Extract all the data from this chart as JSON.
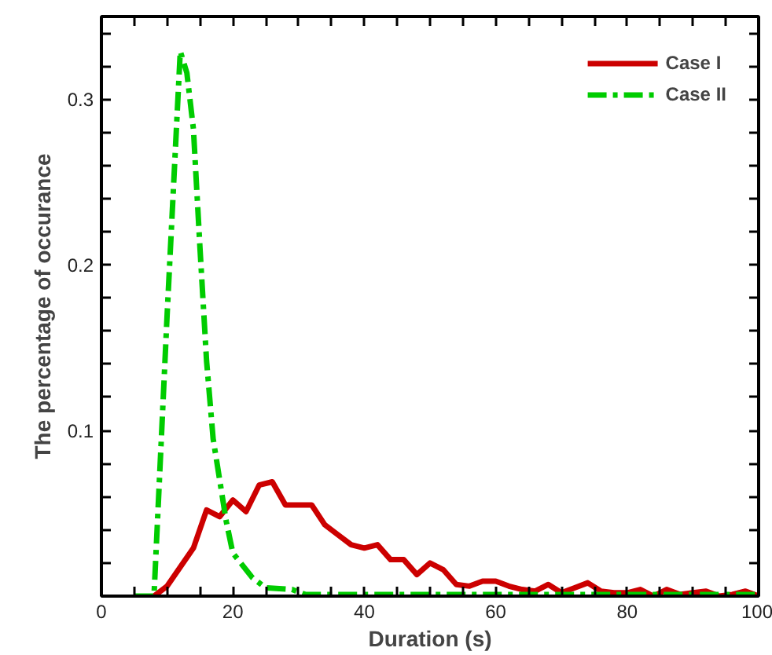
{
  "chart_data": {
    "type": "line",
    "xlabel": "Duration (s)",
    "ylabel": "The percentage of occurance",
    "xlim": [
      0,
      100
    ],
    "ylim": [
      0,
      0.35
    ],
    "xticks": [
      0,
      {
        "value": 5,
        "label": null
      },
      {
        "value": 10,
        "label": null
      },
      {
        "value": 15,
        "label": null
      },
      20,
      {
        "value": 25,
        "label": null
      },
      {
        "value": 30,
        "label": null
      },
      {
        "value": 35,
        "label": null
      },
      40,
      {
        "value": 45,
        "label": null
      },
      {
        "value": 50,
        "label": null
      },
      {
        "value": 55,
        "label": null
      },
      60,
      {
        "value": 65,
        "label": null
      },
      {
        "value": 70,
        "label": null
      },
      {
        "value": 75,
        "label": null
      },
      80,
      {
        "value": 85,
        "label": null
      },
      {
        "value": 90,
        "label": null
      },
      {
        "value": 95,
        "label": null
      },
      100
    ],
    "yticks": [
      {
        "value": 0.02,
        "label": null
      },
      {
        "value": 0.04,
        "label": null
      },
      {
        "value": 0.06,
        "label": null
      },
      {
        "value": 0.08,
        "label": null
      },
      0.1,
      {
        "value": 0.12,
        "label": null
      },
      {
        "value": 0.14,
        "label": null
      },
      {
        "value": 0.16,
        "label": null
      },
      {
        "value": 0.18,
        "label": null
      },
      0.2,
      {
        "value": 0.22,
        "label": null
      },
      {
        "value": 0.24,
        "label": null
      },
      {
        "value": 0.26,
        "label": null
      },
      {
        "value": 0.28,
        "label": null
      },
      0.3,
      {
        "value": 0.32,
        "label": null
      },
      {
        "value": 0.34,
        "label": null
      }
    ],
    "grid": false,
    "legend": "top right",
    "marker": "none",
    "series": [
      {
        "name": "Case I",
        "color": "#cc0000",
        "line_style": "solid",
        "x": [
          8,
          10,
          14,
          16,
          18,
          20,
          22,
          24,
          26,
          28,
          32,
          34,
          36,
          38,
          40,
          42,
          44,
          46,
          48,
          50,
          52,
          54,
          56,
          58,
          60,
          62,
          64,
          66,
          68,
          70,
          72,
          74,
          76,
          78,
          80,
          82,
          84,
          86,
          88,
          90,
          92,
          94,
          96,
          98,
          100
        ],
        "values": [
          0,
          0.006,
          0.029,
          0.052,
          0.048,
          0.058,
          0.051,
          0.067,
          0.069,
          0.055,
          0.055,
          0.043,
          0.037,
          0.031,
          0.029,
          0.031,
          0.022,
          0.022,
          0.013,
          0.02,
          0.016,
          0.007,
          0.006,
          0.009,
          0.009,
          0.006,
          0.004,
          0.003,
          0.007,
          0.002,
          0.005,
          0.008,
          0.003,
          0.002,
          0.002,
          0.004,
          0,
          0.004,
          0.001,
          0.002,
          0.003,
          0,
          0.001,
          0.003,
          0
        ]
      },
      {
        "name": "Case II",
        "color": "#00cc00",
        "line_style": "dashdot",
        "x": [
          5,
          8,
          10,
          12,
          13,
          14,
          15,
          16,
          17,
          19,
          20,
          23,
          25,
          29,
          31,
          40,
          50,
          60,
          70,
          80,
          90,
          100
        ],
        "values": [
          0,
          0,
          0.17,
          0.329,
          0.316,
          0.282,
          0.21,
          0.142,
          0.095,
          0.045,
          0.026,
          0.011,
          0.005,
          0.004,
          0.001,
          0.001,
          0.001,
          0.001,
          0.001,
          0.001,
          0.001,
          0.001
        ]
      }
    ]
  }
}
